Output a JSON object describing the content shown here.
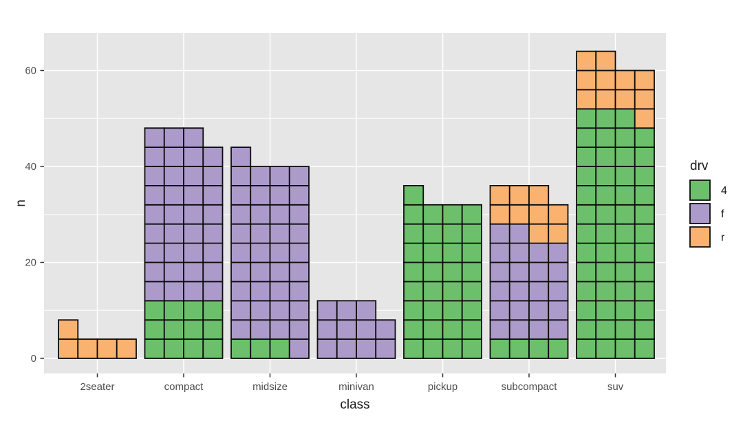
{
  "figure": {
    "background": "#ffffff"
  },
  "chart_data": {
    "type": "bar",
    "subtype": "waffle-stacked-bar",
    "title": "",
    "xlabel": "class",
    "ylabel": "n",
    "categories": [
      "2seater",
      "compact",
      "midsize",
      "minivan",
      "pickup",
      "subcompact",
      "suv"
    ],
    "series": [
      {
        "name": "4",
        "color": "#6dc06b",
        "values": [
          0,
          12,
          3,
          0,
          33,
          4,
          51
        ]
      },
      {
        "name": "f",
        "color": "#ac9bca",
        "values": [
          0,
          35,
          38,
          11,
          0,
          22,
          0
        ]
      },
      {
        "name": "r",
        "color": "#fab270",
        "values": [
          5,
          0,
          0,
          0,
          0,
          9,
          11
        ]
      }
    ],
    "totals": [
      5,
      47,
      41,
      11,
      33,
      35,
      62
    ],
    "unit_value": 4,
    "columns_per_bar": 4,
    "fill_order": "row-major-bottom-up",
    "ytick_labels": [
      "0",
      "20",
      "40",
      "60"
    ],
    "ytick_values": [
      0,
      20,
      40,
      60
    ],
    "yminor_values": [
      10,
      30,
      50
    ],
    "ylim": [
      0,
      67.8
    ],
    "grid": "on",
    "legend": {
      "title": "drv",
      "position": "right",
      "entries": [
        "4",
        "f",
        "r"
      ]
    },
    "colors": {
      "panel_bg": "#e6e6e6",
      "grid": "#ffffff",
      "square_stroke": "#0d0d0d",
      "tick": "#333333",
      "tick_label": "#4d4d4d",
      "title_text": "#1a1a1a"
    }
  }
}
